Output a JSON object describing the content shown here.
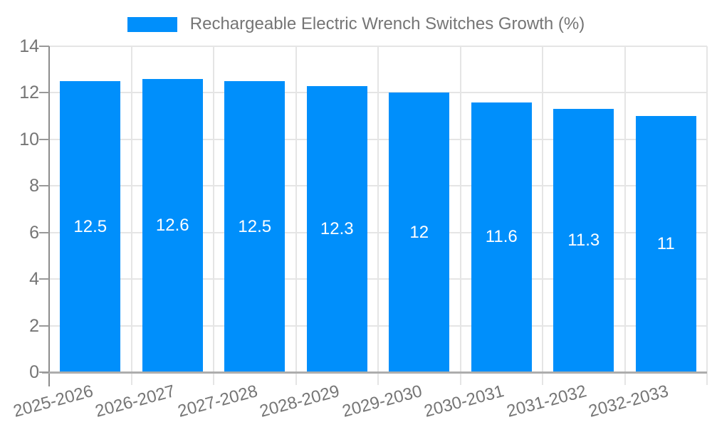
{
  "legend": {
    "label": "Rechargeable Electric Wrench Switches Growth (%)",
    "swatch_color": "#008FFB"
  },
  "chart_data": {
    "type": "bar",
    "title": "Rechargeable Electric Wrench Switches Growth (%)",
    "categories": [
      "2025-2026",
      "2026-2027",
      "2027-2028",
      "2028-2029",
      "2029-2030",
      "2030-2031",
      "2031-2032",
      "2032-2033"
    ],
    "values": [
      12.5,
      12.6,
      12.5,
      12.3,
      12,
      11.6,
      11.3,
      11
    ],
    "data_labels": [
      "12.5",
      "12.6",
      "12.5",
      "12.3",
      "12",
      "11.6",
      "11.3",
      "11"
    ],
    "xlabel": "",
    "ylabel": "",
    "ylim": [
      0,
      14
    ],
    "yticks": [
      0,
      2,
      4,
      6,
      8,
      10,
      12,
      14
    ],
    "grid": true,
    "legend_position": "top",
    "bar_color": "#008FFB"
  },
  "colors": {
    "bar": "#008FFB",
    "axis_label": "#757575",
    "data_label": "#ffffff",
    "grid": "#e5e5e5",
    "axis_line": "#8c8c8c",
    "baseline": "#adadad",
    "tick": "#999999",
    "background": "#ffffff"
  }
}
